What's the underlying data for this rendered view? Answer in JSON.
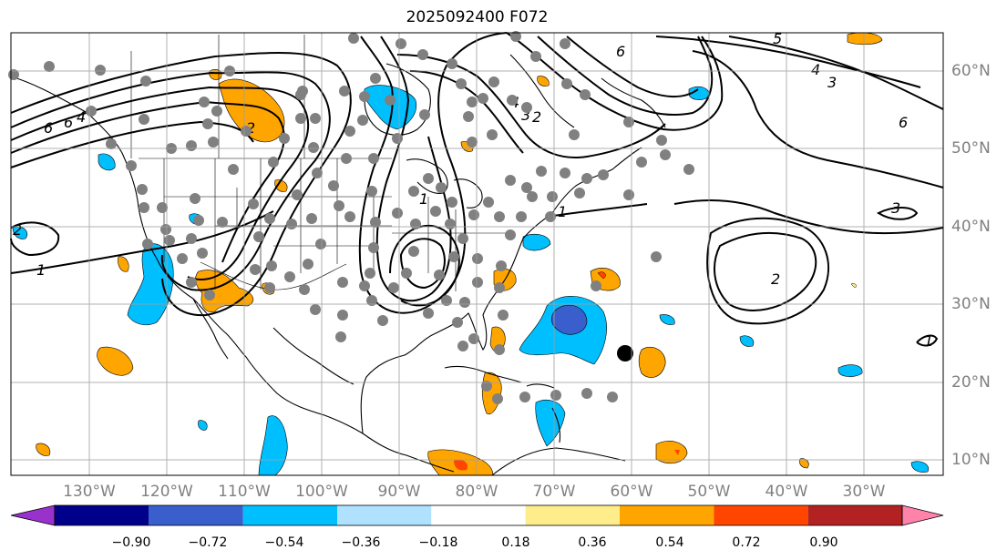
{
  "title": "2025092400 F072",
  "latitude_labels": [
    "60°N",
    "50°N",
    "40°N",
    "30°N",
    "20°N",
    "10°N"
  ],
  "longitude_labels": [
    "130°W",
    "120°W",
    "110°W",
    "100°W",
    "90°W",
    "80°W",
    "70°W",
    "60°W",
    "50°W",
    "40°W",
    "30°W"
  ],
  "colorbar": {
    "ticks": [
      "−0.90",
      "−0.72",
      "−0.54",
      "−0.36",
      "−0.18",
      "0.18",
      "0.36",
      "0.54",
      "0.72",
      "0.90"
    ],
    "colors": [
      "#9932cc",
      "#00008b",
      "#3a5fcd",
      "#00bfff",
      "#b0e2ff",
      "#ffffff",
      "#ffec8b",
      "#ffa500",
      "#ff4500",
      "#b22222",
      "#ff82ab"
    ]
  },
  "contour_labels": [
    "6",
    "6",
    "4",
    "2",
    "1",
    "6",
    "4",
    "3",
    "2",
    "5",
    "4",
    "3",
    "6",
    "3",
    "2",
    "1",
    "1",
    "1",
    "2"
  ],
  "fill_colors": {
    "orange": "#ffa500",
    "light_blue": "#00bfff",
    "mid_blue": "#3a5fcd",
    "red": "#ff4500",
    "yellow": "#ffec8b"
  },
  "marker_colors": {
    "station": "#808080",
    "storm": "#000000"
  }
}
